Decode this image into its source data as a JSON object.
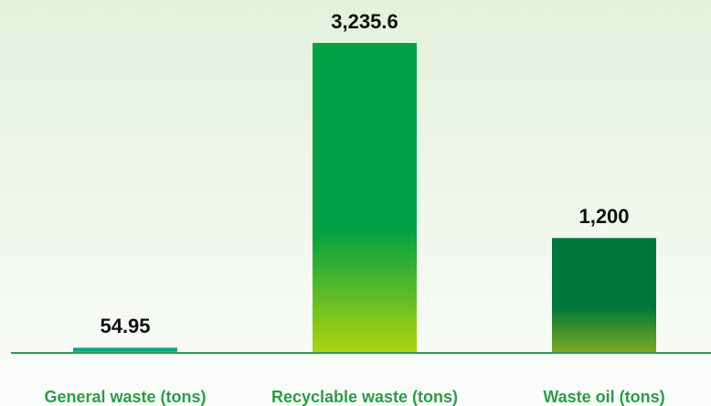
{
  "chart_data": {
    "type": "bar",
    "categories": [
      "General waste (tons)",
      "Recyclable waste (tons)",
      "Waste oil (tons)"
    ],
    "values": [
      54.95,
      3235.6,
      1200
    ],
    "value_labels": [
      "54.95",
      "3,235.6",
      "1,200"
    ],
    "colors": [
      "#0aa88a",
      "#00a044",
      "#00773a"
    ],
    "gradient_end_colors": [
      "#86cca0",
      "#b0d40e",
      "#7eaa22"
    ]
  }
}
